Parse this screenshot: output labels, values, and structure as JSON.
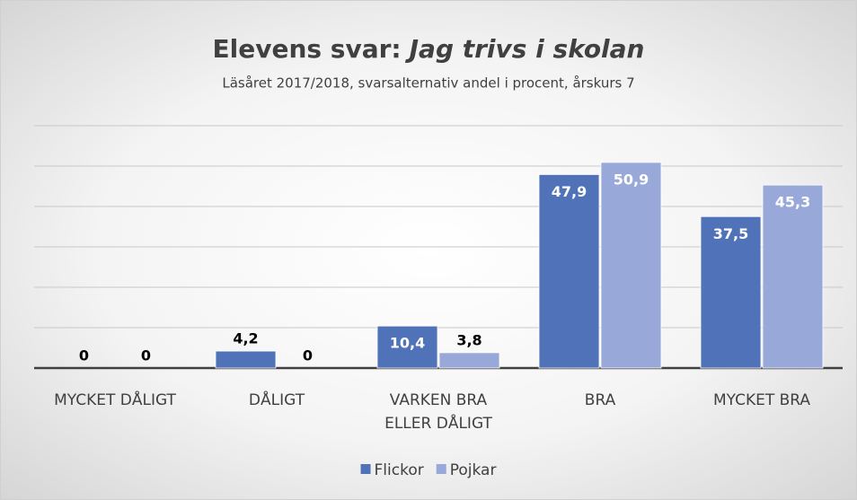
{
  "chart_data": {
    "type": "bar",
    "title": [
      "Elevens svar:",
      "Jag trivs i skolan"
    ],
    "subtitle": "Läsåret 2017/2018, svarsalternativ andel i procent, årskurs 7",
    "categories": [
      "MYCKET DÅLIGT",
      "DÅLIGT",
      "VARKEN BRA ELLER DÅLIGT",
      "BRA",
      "MYCKET BRA"
    ],
    "series": [
      {
        "name": "Flickor",
        "color": "#4f72b8",
        "values": [
          0,
          4.2,
          10.4,
          47.9,
          37.5
        ],
        "value_labels": [
          "0",
          "4,2",
          "10,4",
          "47,9",
          "37,5"
        ]
      },
      {
        "name": "Pojkar",
        "color": "#98a9d9",
        "values": [
          0,
          0,
          3.8,
          50.9,
          45.3
        ],
        "value_labels": [
          "0",
          "0",
          "3,8",
          "50,9",
          "45,3"
        ]
      }
    ],
    "ylim": [
      0,
      60
    ],
    "yticks": [
      0,
      10,
      20,
      30,
      40,
      50,
      60
    ],
    "grid": true,
    "legend": "bottom"
  }
}
